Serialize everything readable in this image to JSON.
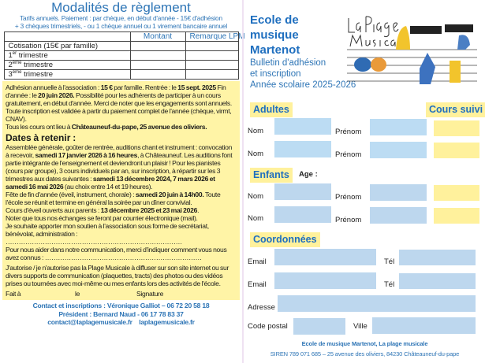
{
  "left": {
    "title": "Modalités de règlement",
    "subtitle1": "Tarifs annuels. Paiement :  par chèque,  en début d'année - 15€ d'adhésion",
    "subtitle2": "+ 3 chèques trimestriels, - ou 1 chèque annuel ou 1 virement bancaire annuel",
    "table": {
      "headers": [
        "",
        "Montant",
        "Remarque LPM"
      ],
      "rows": [
        {
          "label": "Cotisation (15€ par famille)",
          "sup": "",
          "rest": ""
        },
        {
          "label": "1",
          "sup": "er",
          "rest": " trimestre"
        },
        {
          "label": "2",
          "sup": "ème",
          "rest": " trimestre"
        },
        {
          "label": "3",
          "sup": "ème",
          "rest": " trimestre"
        }
      ]
    },
    "info": {
      "p1a": "Adhésion annuelle à l'association : ",
      "p1b": "15 €",
      "p1c": " par famille. Rentrée : le ",
      "p1d": "15 sept. 2025",
      "p1e": " Fin d'année : le ",
      "p1f": "20 juin 2026.",
      "p1g": " Possibilité pour les adhérents de participer à un cours gratuitement, en début d'année. Merci de noter que les engagements sont annuels. Toute inscription est validée à partir du paiement complet de l'année (chèque, virmt, CNAV).",
      "p2a": "Tous les cours ont lieu à ",
      "p2b": "Châteauneuf-du-pape, 25 avenue des oliviers."
    },
    "dates": {
      "heading": "Dates à retenir :",
      "d1a": "Assemblée générale, goûter de rentrée, auditions chant et instrument : convocation à recevoir, ",
      "d1b": "samedi 17 janvier 2026 à 16 heures",
      ", d1c": "",
      "d1c": ", à Châteauneuf. Les auditions font partie intégrante de l'enseignement et deviendront un plaisir ! Pour les pianistes (cours par groupe), 3 cours individuels par an, sur inscription, à répartir sur les 3 trimestres aux dates suivantes  : ",
      "d1d": "samedi 13 décembre 2024, 7  mars 2026 et samedi 16 mai 2026",
      "d1e": " (au choix entre 14 et 19 heures).",
      "d2a": "Fête de fin d'année (éveil, instrument, chorale)  : ",
      "d2b": "samedi 20 juin à 14h00.",
      "d2c": " Toute l'école se réunit et termine en général la soirée par un dîner convivial.",
      "d3a": "Cours d'éveil ouverts aux parents : ",
      "d3b": "13 décembre 2025 et 23 mai 2026",
      ".": "",
      "d3c": ".",
      "d4": "Noter que tous nos échanges se feront par courrier électronique (mail).",
      "d5": "Je souhaite apporter mon soutien à l'association sous forme de secrétariat, bénévolat, administration : ………………………………………………………………………",
      "d6": "Pour nous aider dans notre communication, merci d'indiquer comment vous nous avez connus : ………………………………………………………………",
      "d7": "J'autorise / je n'autorise pas la Plage Musicale à diffuser sur son site internet ou sur divers supports de communication (plaquettes, tracts) des photos ou des vidéos prises ou tournées avec moi-même ou mes enfants lors des activités de l'école.",
      "fait": "Fait à",
      "le": "le",
      "signature": "Signature"
    },
    "contact1": "Contact et inscriptions : Véronique Galliot –  06 72 20 58 18",
    "contact2": "Président : Bernard Naud - 06 17 78 83 37",
    "email": "contact@laplagemusicale.fr",
    "site": "laplagemusicale.fr"
  },
  "right": {
    "school": [
      "Ecole de",
      "musique",
      "Martenot"
    ],
    "bulletin": [
      "Bulletin d'adhésion",
      "et inscription",
      "Année scolaire 2025-2026"
    ],
    "logo_text": "La Plage Musicale",
    "adultes": "Adultes",
    "cours_suivi": "Cours suivi",
    "enfants": "Enfants",
    "age": "Age :",
    "coordonnees": "Coordonnées",
    "nom": "Nom",
    "prenom": "Prénom",
    "email": "Email",
    "tel": "Tél",
    "adresse": "Adresse",
    "code_postal": "Code postal",
    "ville": "Ville",
    "footer1": "Ecole de musique Martenot, La plage musicale",
    "footer2": "SIREN 789 071 685 – 25 avenue des oliviers, 84230 Châteauneuf-du-pape"
  },
  "colors": {
    "accent": "#2e75b6",
    "yellow": "#fff19c",
    "field_blue": "#bcdcf3"
  }
}
